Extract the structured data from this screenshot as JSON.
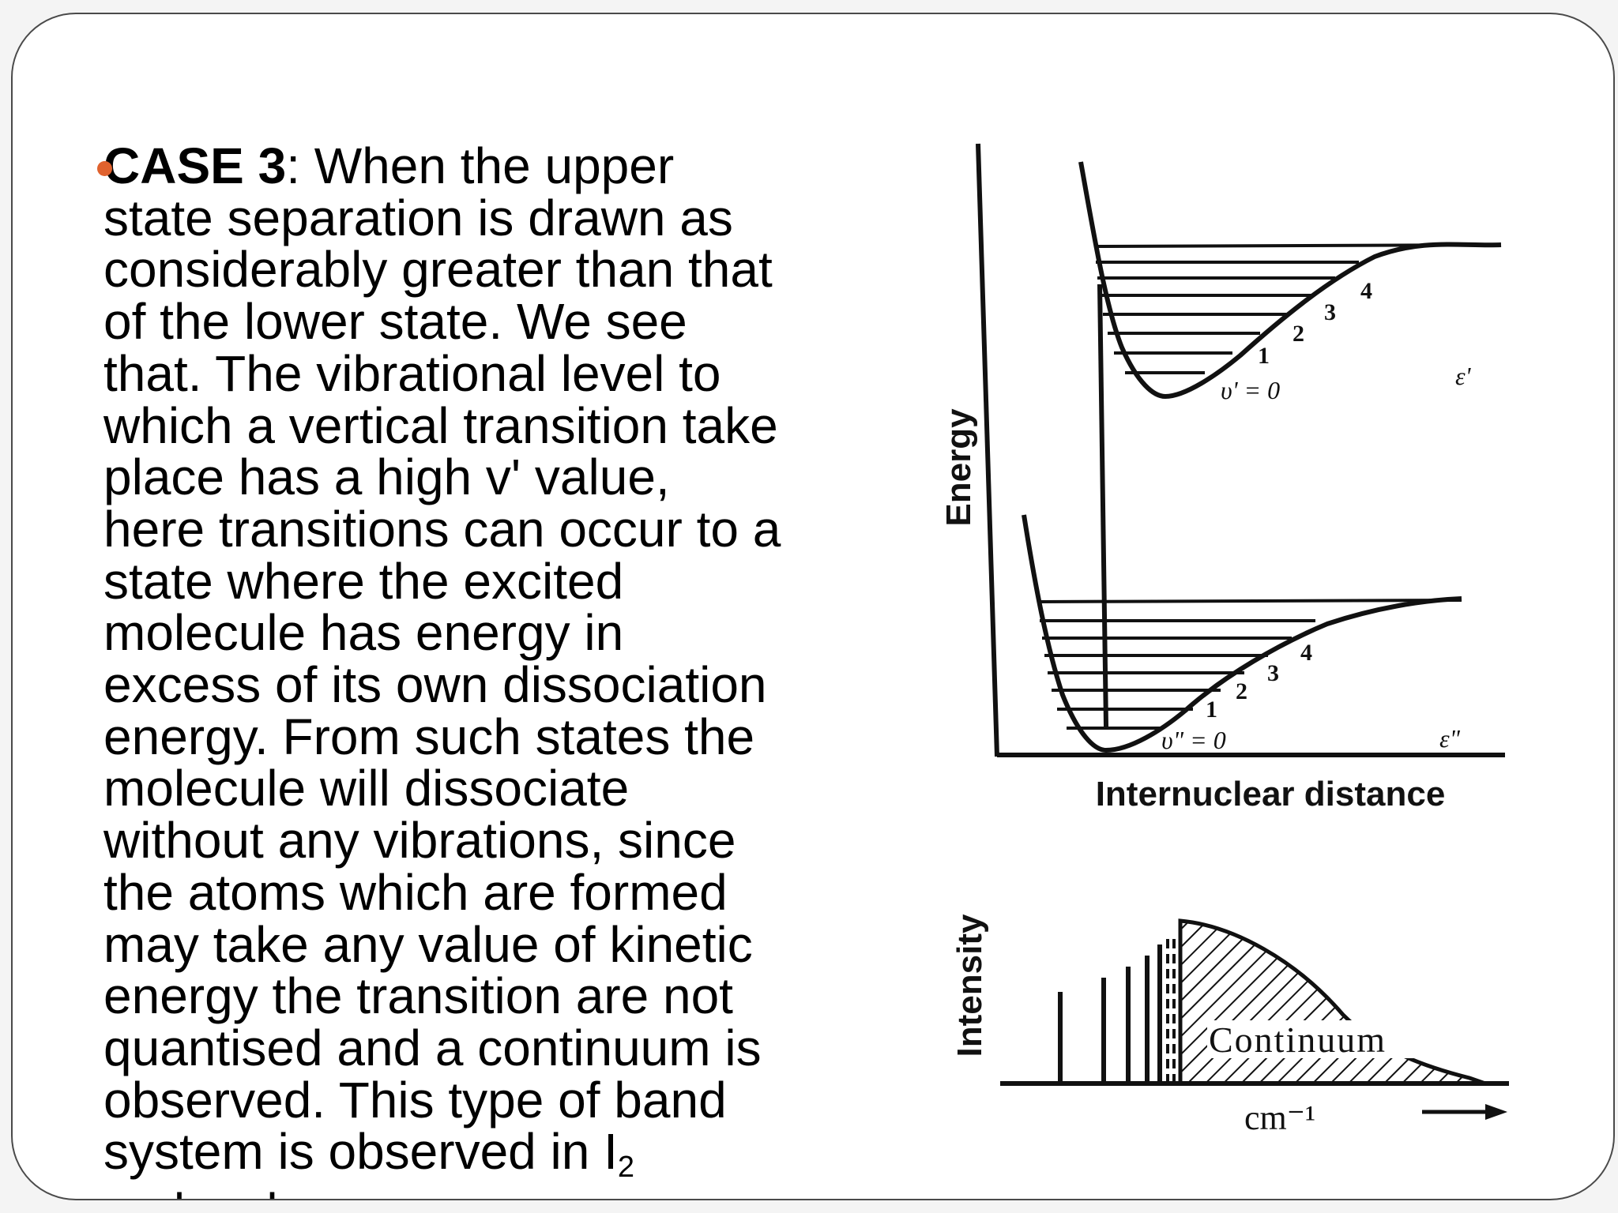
{
  "slide": {
    "case_label": "CASE 3",
    "body_lines": [
      ": When the upper",
      "state separation is drawn as",
      "considerably greater than that",
      "of the lower state. We see",
      "that. The vibrational level to",
      "which a vertical transition take",
      "place has a high v' value,",
      "here transitions can occur to a",
      "state where the excited",
      "molecule has energy in",
      "excess of its own dissociation",
      "energy. From such states the",
      "molecule will dissociate",
      "without any vibrations, since",
      "the atoms which are formed",
      "may take any value of kinetic",
      "energy the transition are not",
      "quantised and a continuum is",
      "observed. This type of band",
      "system is observed in I"
    ],
    "subscript": "2",
    "last_line": "molecule"
  },
  "diagram": {
    "y_label": "Energy",
    "x_label": "Internuclear distance",
    "upper": {
      "levels": [
        "1",
        "2",
        "3",
        "4"
      ],
      "v_label": "υ' = 0",
      "eps_label": "ε'"
    },
    "lower": {
      "levels": [
        "1",
        "2",
        "3",
        "4"
      ],
      "v_label": "υ\" = 0",
      "eps_label": "ε\""
    }
  },
  "spectrum": {
    "y_label": "Intensity",
    "continuum_label": "Continuum",
    "x_unit": "cm⁻¹"
  },
  "colors": {
    "bullet": "#e0622e",
    "border": "#4a4a4a",
    "ink": "#111111"
  }
}
